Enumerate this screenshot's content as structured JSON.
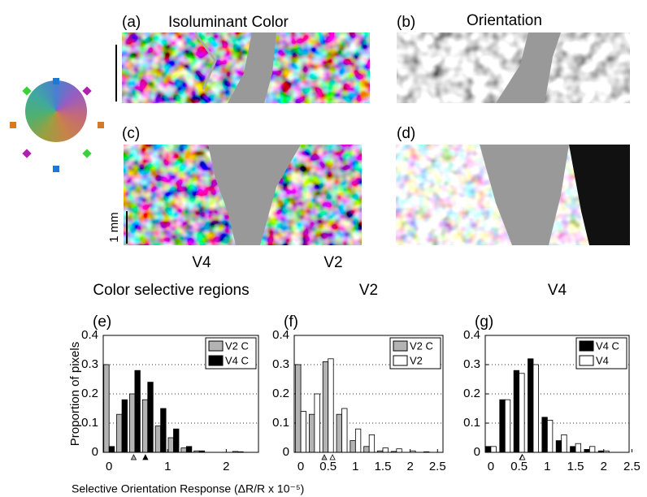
{
  "figure": {
    "panels": [
      {
        "label": "(a)",
        "title": "Isoluminant Color"
      },
      {
        "label": "(b)",
        "title": "Orientation"
      },
      {
        "label": "(c)"
      },
      {
        "label": "(d)"
      }
    ],
    "region_labels": [
      "V4",
      "V2"
    ],
    "scale_bar": "1 mm"
  },
  "chart_data": [
    {
      "type": "bar",
      "label": "(e)",
      "title": "Color selective regions",
      "ylabel": "Proportion of pixels",
      "x": [
        0,
        0.22,
        0.44,
        0.66,
        0.88,
        1.1,
        1.32,
        1.54,
        1.76,
        1.98,
        2.2
      ],
      "series": [
        {
          "name": "V2 C",
          "color": "#b3b3b3",
          "mean": 0.42,
          "values": [
            0.3,
            0.13,
            0.2,
            0.18,
            0.09,
            0.05,
            0.015,
            0.005,
            0,
            0,
            0.003
          ]
        },
        {
          "name": "V4 C",
          "color": "#000000",
          "mean": 0.62,
          "values": [
            0.02,
            0.18,
            0.28,
            0.24,
            0.15,
            0.08,
            0.02,
            0.005,
            0,
            0,
            0.002
          ]
        }
      ],
      "xlim": [
        -0.1,
        2.55
      ],
      "xticks": [
        0,
        1,
        2
      ],
      "ylim": [
        0,
        0.4
      ],
      "yticks": [
        0,
        0.1,
        0.2,
        0.3,
        0.4
      ],
      "grid": true,
      "legend": "upper right"
    },
    {
      "type": "bar",
      "label": "(f)",
      "title": "V2",
      "x": [
        0,
        0.25,
        0.5,
        0.75,
        1,
        1.25,
        1.5,
        1.75,
        2,
        2.25
      ],
      "series": [
        {
          "name": "V2 C",
          "color": "#b3b3b3",
          "mean": 0.43,
          "values": [
            0.3,
            0.13,
            0.31,
            0.13,
            0.04,
            0.02,
            0.005,
            0.003,
            0,
            0
          ]
        },
        {
          "name": "V2",
          "color": "#ffffff",
          "mean": 0.58,
          "values": [
            0.14,
            0.2,
            0.32,
            0.15,
            0.08,
            0.06,
            0.015,
            0.012,
            0.005,
            0.002
          ]
        }
      ],
      "xlim": [
        -0.12,
        2.6
      ],
      "xticks": [
        0,
        0.5,
        1,
        1.5,
        2,
        2.5
      ],
      "ylim": [
        0,
        0.4
      ],
      "yticks": [
        0,
        0.1,
        0.2,
        0.3,
        0.4
      ],
      "grid": true,
      "legend": "upper right"
    },
    {
      "type": "bar",
      "label": "(g)",
      "title": "V4",
      "x": [
        0,
        0.25,
        0.5,
        0.75,
        1,
        1.25,
        1.5,
        1.75,
        2,
        2.25
      ],
      "series": [
        {
          "name": "V4 C",
          "color": "#000000",
          "mean": 0.55,
          "values": [
            0.02,
            0.18,
            0.28,
            0.32,
            0.12,
            0.04,
            0.02,
            0.01,
            0.005,
            0
          ]
        },
        {
          "name": "V4",
          "color": "#ffffff",
          "mean": 0.56,
          "values": [
            0.02,
            0.18,
            0.27,
            0.3,
            0.11,
            0.06,
            0.03,
            0.02,
            0.005,
            0
          ]
        }
      ],
      "xlim": [
        -0.1,
        2.45
      ],
      "xticks": [
        0,
        0.5,
        1,
        1.5,
        2,
        2.5
      ],
      "ylim": [
        0,
        0.4
      ],
      "yticks": [
        0,
        0.1,
        0.2,
        0.3,
        0.4
      ],
      "grid": true,
      "legend": "upper right",
      "xlabel": "Selective Orientation Response (ΔR/R x 10⁻⁵)"
    }
  ]
}
